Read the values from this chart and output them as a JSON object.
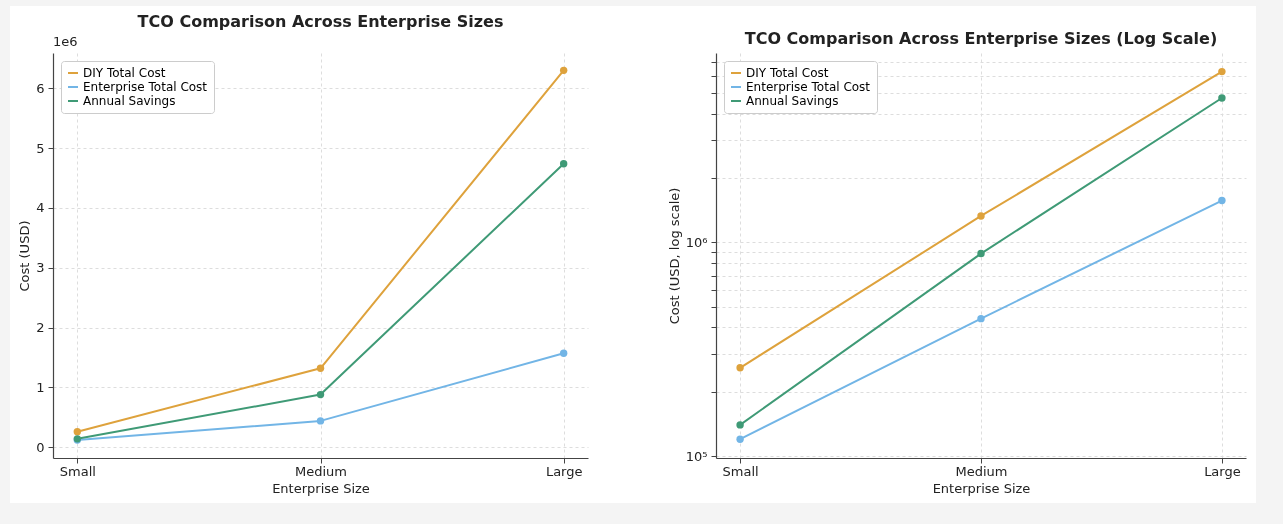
{
  "chart_data": [
    {
      "type": "line",
      "title": "TCO Comparison Across Enterprise Sizes",
      "xlabel": "Enterprise Size",
      "ylabel": "Cost (USD)",
      "categories": [
        "Small",
        "Medium",
        "Large"
      ],
      "series": [
        {
          "name": "DIY Total Cost",
          "color": "#dea23c",
          "values": [
            0.26,
            1.32,
            6.3
          ]
        },
        {
          "name": "Enterprise Total Cost",
          "color": "#72b5e6",
          "values": [
            0.12,
            0.44,
            1.57
          ]
        },
        {
          "name": "Annual Savings",
          "color": "#3f9a76",
          "values": [
            0.14,
            0.88,
            4.74
          ]
        }
      ],
      "ylim": [
        -0.18,
        6.59
      ],
      "yticks": [
        0,
        1,
        2,
        3,
        4,
        5,
        6
      ],
      "annotations": [
        "1e6"
      ],
      "grid": true,
      "legend": "top left",
      "marker": "circle",
      "line_style": "solid"
    },
    {
      "type": "line",
      "title": "TCO Comparison Across Enterprise Sizes (Log Scale)",
      "xlabel": "Enterprise Size",
      "ylabel": "Cost (USD, log scale)",
      "categories": [
        "Small",
        "Medium",
        "Large"
      ],
      "series": [
        {
          "name": "DIY Total Cost",
          "color": "#dea23c",
          "values": [
            259000,
            1330000,
            6300000
          ]
        },
        {
          "name": "Enterprise Total Cost",
          "color": "#72b5e6",
          "values": [
            120000,
            440000,
            1570000
          ]
        },
        {
          "name": "Annual Savings",
          "color": "#3f9a76",
          "values": [
            140000,
            887000,
            4740000
          ]
        }
      ],
      "ylim": [
        98000,
        7700000
      ],
      "yticks": [
        {
          "value": 100000,
          "label": "10⁵"
        },
        {
          "value": 200000,
          "label": null
        },
        {
          "value": 300000,
          "label": null
        },
        {
          "value": 400000,
          "label": null
        },
        {
          "value": 500000,
          "label": null
        },
        {
          "value": 600000,
          "label": null
        },
        {
          "value": 700000,
          "label": null
        },
        {
          "value": 800000,
          "label": null
        },
        {
          "value": 900000,
          "label": null
        },
        {
          "value": 1000000,
          "label": "10⁶"
        },
        {
          "value": 2000000,
          "label": null
        },
        {
          "value": 3000000,
          "label": null
        },
        {
          "value": 4000000,
          "label": null
        },
        {
          "value": 5000000,
          "label": null
        },
        {
          "value": 6000000,
          "label": null
        },
        {
          "value": 7000000,
          "label": null
        }
      ],
      "log": "y",
      "grid": true,
      "legend": "top left",
      "marker": "circle",
      "line_style": "solid"
    }
  ]
}
